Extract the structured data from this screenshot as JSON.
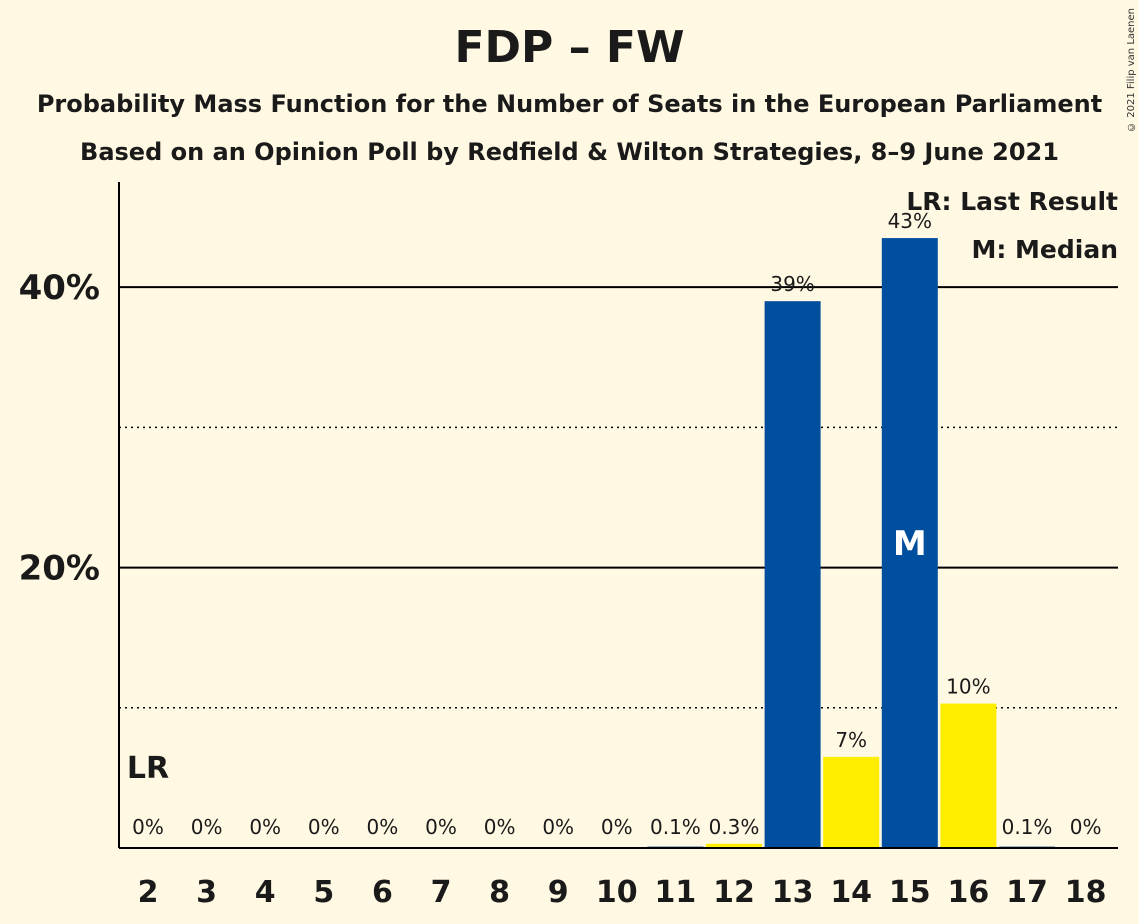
{
  "chart_data": {
    "type": "bar",
    "title": "FDP – FW",
    "subtitle": "Probability Mass Function for the Number of Seats in the European Parliament",
    "subtitle2": "Based on an Opinion Poll by Redfield & Wilton Strategies, 8–9 June 2021",
    "copyright": "© 2021 Filip van Laenen",
    "categories": [
      "2",
      "3",
      "4",
      "5",
      "6",
      "7",
      "8",
      "9",
      "10",
      "11",
      "12",
      "13",
      "14",
      "15",
      "16",
      "17",
      "18"
    ],
    "values": [
      0,
      0,
      0,
      0,
      0,
      0,
      0,
      0,
      0,
      0.1,
      0.3,
      39,
      6.5,
      43.5,
      10.3,
      0.1,
      0
    ],
    "data_labels": [
      "0%",
      "0%",
      "0%",
      "0%",
      "0%",
      "0%",
      "0%",
      "0%",
      "0%",
      "0.1%",
      "0.3%",
      "39%",
      "7%",
      "43%",
      "10%",
      "0.1%",
      "0%"
    ],
    "ylim": [
      0,
      47.5
    ],
    "yticks": [
      {
        "value": 20,
        "label": "20%"
      },
      {
        "value": 40,
        "label": "40%"
      }
    ],
    "dotted_gridlines": [
      10,
      30
    ],
    "colors": {
      "blue": "#004E9E",
      "yellow": "#FFED00",
      "background": "#FFF8E2",
      "axis": "#000000"
    },
    "bar_colors": [
      "yellow",
      "blue",
      "yellow",
      "blue",
      "yellow",
      "blue",
      "yellow",
      "blue",
      "yellow",
      "blue",
      "yellow",
      "blue",
      "yellow",
      "blue",
      "yellow",
      "blue",
      "yellow"
    ],
    "last_result": {
      "category": "2",
      "label": "LR"
    },
    "median": {
      "category": "15",
      "label": "M"
    },
    "legend": [
      "LR: Last Result",
      "M: Median"
    ],
    "legend_position": "top-right"
  }
}
